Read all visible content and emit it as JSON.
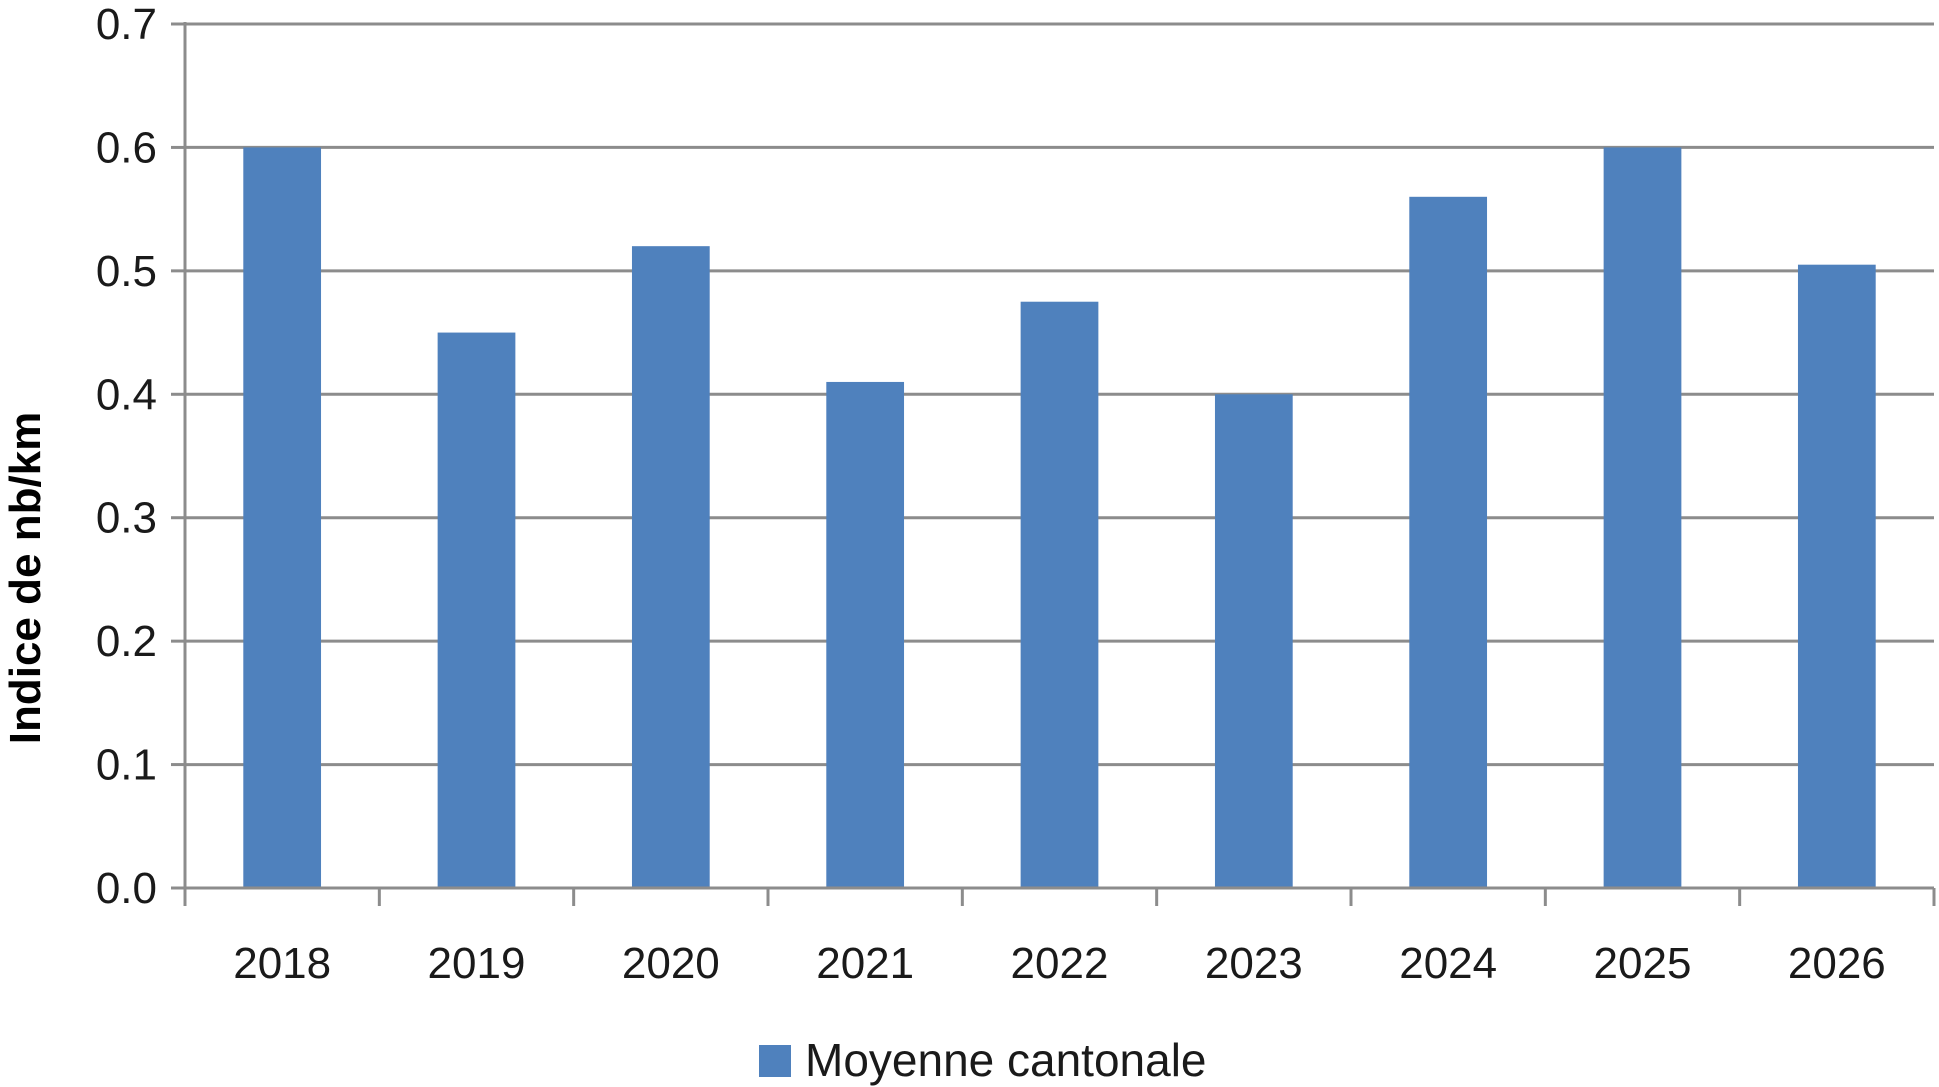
{
  "chart_data": {
    "type": "bar",
    "categories": [
      "2018",
      "2019",
      "2020",
      "2021",
      "2022",
      "2023",
      "2024",
      "2025",
      "2026"
    ],
    "series": [
      {
        "name": "Moyenne cantonale",
        "values": [
          0.6,
          0.45,
          0.52,
          0.41,
          0.475,
          0.4,
          0.56,
          0.6,
          0.505
        ],
        "color": "#4f81bd"
      }
    ],
    "ylabel": "Indice de nb/km",
    "ylim": [
      0,
      0.7
    ],
    "yticks": [
      "0.0",
      "0.1",
      "0.2",
      "0.3",
      "0.4",
      "0.5",
      "0.6",
      "0.7"
    ],
    "grid": true,
    "legend": "bottom-center"
  }
}
